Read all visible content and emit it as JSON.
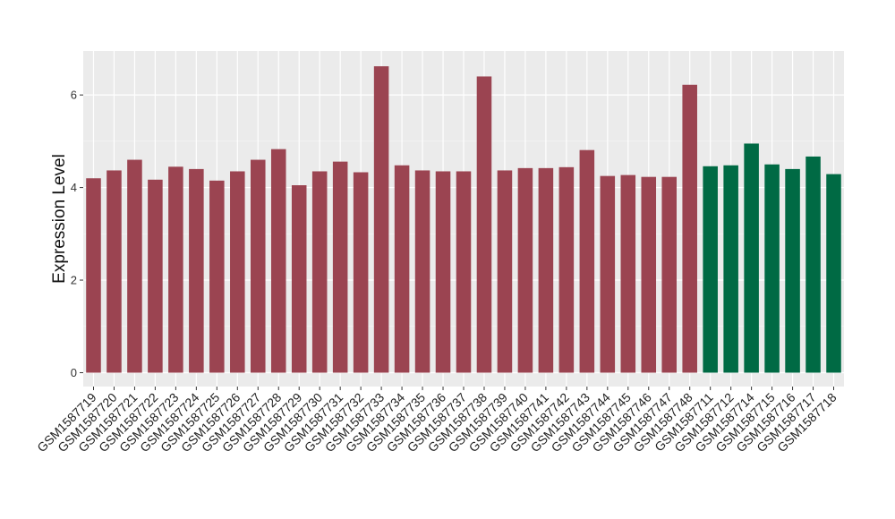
{
  "chart_data": {
    "type": "bar",
    "title": "",
    "xlabel": "",
    "ylabel": "Expression Level",
    "ylim": [
      -0.3,
      6.95
    ],
    "yticks": [
      0,
      2,
      4,
      6
    ],
    "grid": true,
    "background": "#EBEBEB",
    "categories": [
      "GSM1587719",
      "GSM1587720",
      "GSM1587721",
      "GSM1587722",
      "GSM1587723",
      "GSM1587724",
      "GSM1587725",
      "GSM1587726",
      "GSM1587727",
      "GSM1587728",
      "GSM1587729",
      "GSM1587730",
      "GSM1587731",
      "GSM1587732",
      "GSM1587733",
      "GSM1587734",
      "GSM1587735",
      "GSM1587736",
      "GSM1587737",
      "GSM1587738",
      "GSM1587739",
      "GSM1587740",
      "GSM1587741",
      "GSM1587742",
      "GSM1587743",
      "GSM1587744",
      "GSM1587745",
      "GSM1587746",
      "GSM1587747",
      "GSM1587748",
      "GSM1587711",
      "GSM1587712",
      "GSM1587714",
      "GSM1587715",
      "GSM1587716",
      "GSM1587717",
      "GSM1587718"
    ],
    "values": [
      4.2,
      4.37,
      4.6,
      4.17,
      4.45,
      4.4,
      4.15,
      4.35,
      4.6,
      4.83,
      4.05,
      4.35,
      4.56,
      4.33,
      6.62,
      4.48,
      4.37,
      4.35,
      4.35,
      6.4,
      4.37,
      4.42,
      4.42,
      4.44,
      4.81,
      4.25,
      4.27,
      4.23,
      4.23,
      6.22,
      4.46,
      4.48,
      4.95,
      4.5,
      4.4,
      4.67,
      4.29
    ],
    "groups": [
      "a",
      "a",
      "a",
      "a",
      "a",
      "a",
      "a",
      "a",
      "a",
      "a",
      "a",
      "a",
      "a",
      "a",
      "a",
      "a",
      "a",
      "a",
      "a",
      "a",
      "a",
      "a",
      "a",
      "a",
      "a",
      "a",
      "a",
      "a",
      "a",
      "a",
      "b",
      "b",
      "b",
      "b",
      "b",
      "b",
      "b"
    ],
    "colors": {
      "a": "#9B4451",
      "b": "#006A44"
    }
  }
}
